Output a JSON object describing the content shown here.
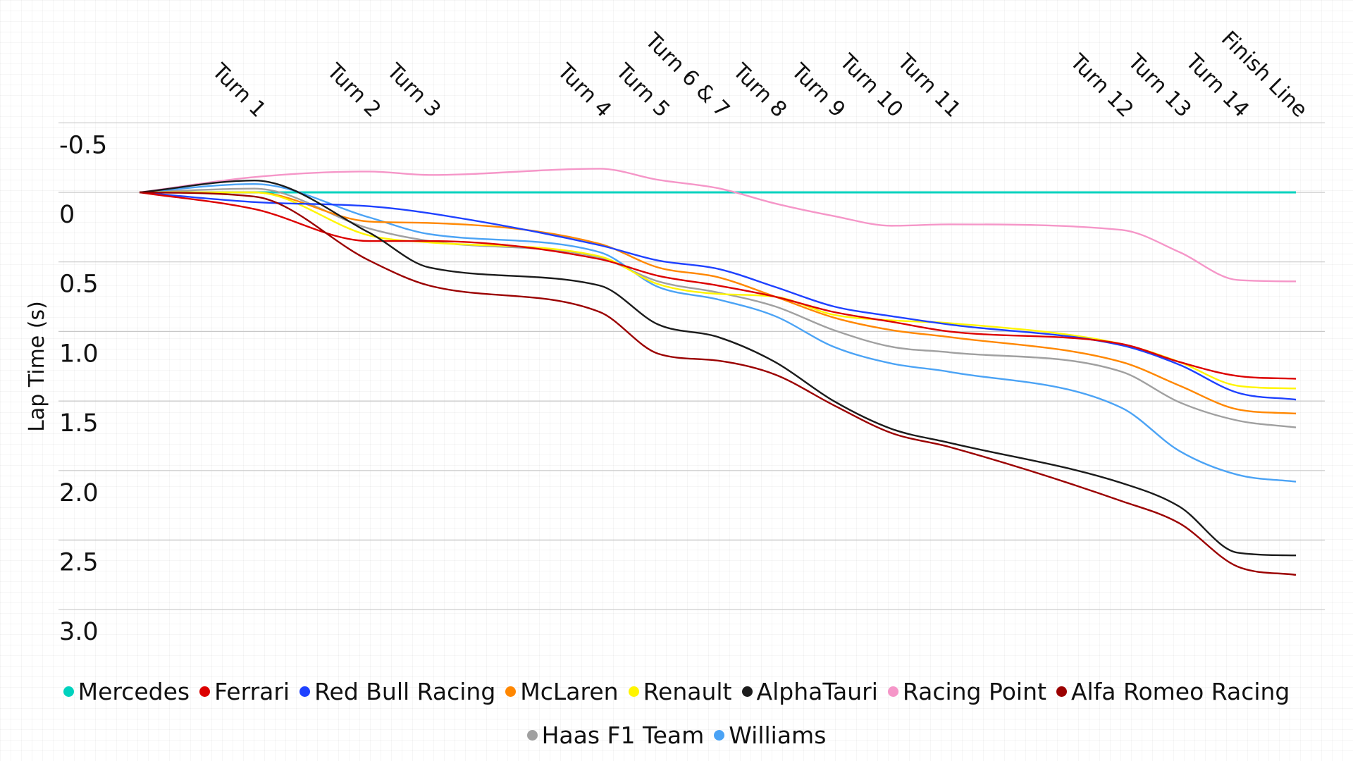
{
  "chart_data": {
    "type": "line",
    "title": "",
    "xlabel": "",
    "ylabel": "Lap Time (s)",
    "ylim": [
      -0.5,
      3.0
    ],
    "y_inverted": true,
    "y_ticks": [
      "-0.5",
      "0",
      "0.5",
      "1.0",
      "1.5",
      "2.0",
      "2.5",
      "3.0"
    ],
    "y_tick_values": [
      -0.5,
      0,
      0.5,
      1.0,
      1.5,
      2.0,
      2.5,
      3.0
    ],
    "grid": true,
    "legend_position": "bottom",
    "categories": [
      "",
      "Turn 1",
      "Turn 2",
      "Turn 3",
      "Turn 4",
      "Turn 5",
      "Turn 6 & 7",
      "Turn 8",
      "Turn 9",
      "Turn 10",
      "Turn 11",
      "Turn 12",
      "Turn 13",
      "Turn 14",
      "Finish Line"
    ],
    "series": [
      {
        "name": "Mercedes",
        "color": "#00d2be",
        "values": [
          0,
          0,
          0,
          0,
          0,
          0,
          0,
          0,
          0,
          0,
          0,
          0,
          0,
          0,
          0
        ]
      },
      {
        "name": "Ferrari",
        "color": "#dc0000",
        "values": [
          0,
          0.12,
          0.35,
          0.35,
          0.48,
          0.6,
          0.67,
          0.75,
          0.86,
          0.93,
          1.0,
          1.09,
          1.22,
          1.32,
          1.34
        ]
      },
      {
        "name": "Red Bull Racing",
        "color": "#1e41ff",
        "values": [
          0,
          0.07,
          0.1,
          0.15,
          0.38,
          0.49,
          0.55,
          0.68,
          0.82,
          0.89,
          0.95,
          1.1,
          1.24,
          1.44,
          1.49
        ]
      },
      {
        "name": "McLaren",
        "color": "#ff8700",
        "values": [
          0,
          0.0,
          0.21,
          0.22,
          0.37,
          0.54,
          0.61,
          0.75,
          0.9,
          0.99,
          1.04,
          1.22,
          1.39,
          1.56,
          1.59
        ]
      },
      {
        "name": "Renault",
        "color": "#fff500",
        "values": [
          0,
          0.0,
          0.31,
          0.36,
          0.46,
          0.66,
          0.73,
          0.75,
          0.88,
          0.92,
          0.94,
          1.09,
          1.22,
          1.39,
          1.41
        ]
      },
      {
        "name": "AlphaTauri",
        "color": "#1b1b1b",
        "values": [
          0,
          -0.085,
          0.29,
          0.54,
          0.67,
          0.95,
          1.04,
          1.22,
          1.5,
          1.7,
          1.8,
          2.09,
          2.26,
          2.59,
          2.61
        ]
      },
      {
        "name": "Racing Point",
        "color": "#f596c8",
        "values": [
          0,
          -0.11,
          -0.15,
          -0.125,
          -0.17,
          -0.09,
          -0.03,
          0.08,
          0.17,
          0.24,
          0.23,
          0.27,
          0.43,
          0.63,
          0.64
        ]
      },
      {
        "name": "Alfa Romeo Racing",
        "color": "#9b0000",
        "values": [
          0,
          0.03,
          0.49,
          0.67,
          0.86,
          1.16,
          1.21,
          1.31,
          1.53,
          1.73,
          1.83,
          2.22,
          2.38,
          2.69,
          2.75
        ]
      },
      {
        "name": "Haas F1 Team",
        "color": "#a0a0a0",
        "values": [
          0,
          -0.027,
          0.26,
          0.35,
          0.47,
          0.64,
          0.72,
          0.82,
          0.99,
          1.11,
          1.15,
          1.29,
          1.51,
          1.64,
          1.69
        ]
      },
      {
        "name": "Williams",
        "color": "#4ba3f5",
        "values": [
          0,
          -0.06,
          0.18,
          0.3,
          0.43,
          0.68,
          0.77,
          0.89,
          1.11,
          1.23,
          1.29,
          1.55,
          1.86,
          2.03,
          2.08
        ]
      }
    ]
  }
}
